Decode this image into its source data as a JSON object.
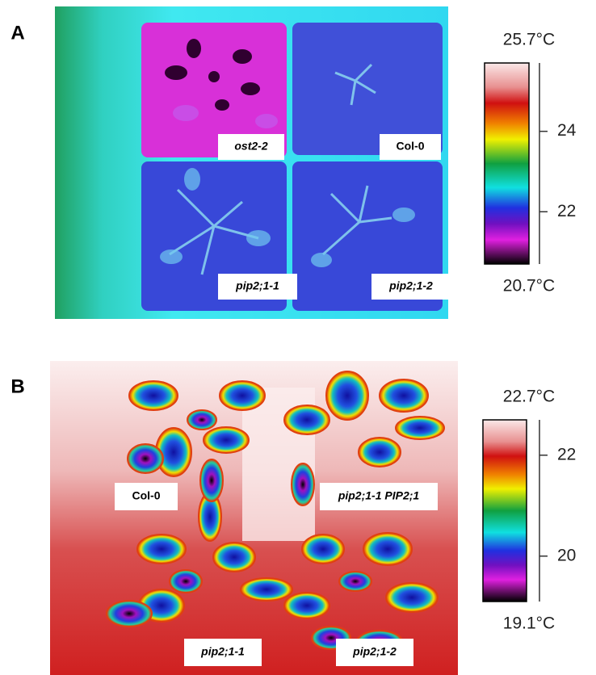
{
  "panels": [
    {
      "label": "A",
      "image_labels": [
        "ost2-2",
        "Col-0",
        "pip2;1-1",
        "pip2;1-2"
      ],
      "colorbar": {
        "max": {
          "value": 25.7,
          "label": "25.7°C"
        },
        "min": {
          "value": 20.7,
          "label": "20.7°C"
        },
        "ticks": [
          24,
          22
        ]
      }
    },
    {
      "label": "B",
      "image_labels": [
        "Col-0",
        "pip2;1-1 PIP2;1",
        "pip2;1-1",
        "pip2;1-2"
      ],
      "colorbar": {
        "max": {
          "value": 22.7,
          "label": "22.7°C"
        },
        "min": {
          "value": 19.1,
          "label": "19.1°C"
        },
        "ticks": [
          22,
          20
        ]
      }
    }
  ]
}
